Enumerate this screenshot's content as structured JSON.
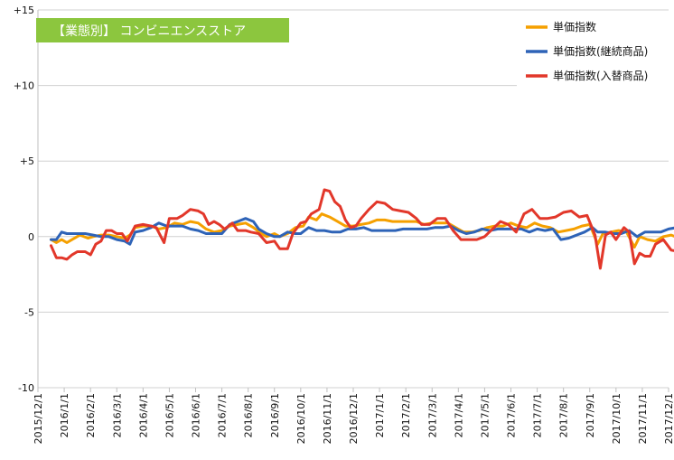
{
  "chart_data": {
    "type": "line",
    "title": "【業態別】 コンビニエンスストア",
    "title_bg": "#8cc63e",
    "ylim": [
      -10,
      15
    ],
    "yticks": [
      {
        "value": 15,
        "label": "+15"
      },
      {
        "value": 10,
        "label": "+10"
      },
      {
        "value": 5,
        "label": "+5"
      },
      {
        "value": 0,
        "label": "0"
      },
      {
        "value": -5,
        "label": "-5"
      },
      {
        "value": -10,
        "label": "-10"
      }
    ],
    "x_start": "2015-12-01",
    "x_end": "2017-12-01",
    "xtick_labels": [
      "2015/12/1",
      "2016/1/1",
      "2016/2/1",
      "2016/3/1",
      "2016/4/1",
      "2016/5/1",
      "2016/6/1",
      "2016/7/1",
      "2016/8/1",
      "2016/9/1",
      "2016/10/1",
      "2016/11/1",
      "2016/12/1",
      "2017/1/1",
      "2017/2/1",
      "2017/3/1",
      "2017/4/1",
      "2017/5/1",
      "2017/6/1",
      "2017/7/1",
      "2017/8/1",
      "2017/9/1",
      "2017/10/1",
      "2017/11/1",
      "2017/12/1"
    ],
    "grid": "horizontal",
    "legend_position": "top-right",
    "series": [
      {
        "name": "単価指数",
        "color": "#f5a000",
        "points": [
          [
            0.5,
            -0.2
          ],
          [
            0.7,
            -0.4
          ],
          [
            0.9,
            -0.2
          ],
          [
            1.1,
            -0.4
          ],
          [
            1.3,
            -0.2
          ],
          [
            1.6,
            0.1
          ],
          [
            1.9,
            -0.1
          ],
          [
            2.1,
            0.0
          ],
          [
            2.4,
            0.1
          ],
          [
            2.7,
            0.1
          ],
          [
            3.0,
            0.0
          ],
          [
            3.3,
            -0.1
          ],
          [
            3.5,
            0.1
          ],
          [
            3.7,
            0.6
          ],
          [
            4.0,
            0.7
          ],
          [
            4.3,
            0.7
          ],
          [
            4.6,
            0.5
          ],
          [
            4.9,
            0.6
          ],
          [
            5.2,
            0.9
          ],
          [
            5.5,
            0.8
          ],
          [
            5.8,
            1.0
          ],
          [
            6.1,
            0.9
          ],
          [
            6.4,
            0.5
          ],
          [
            6.7,
            0.3
          ],
          [
            7.0,
            0.4
          ],
          [
            7.3,
            0.7
          ],
          [
            7.6,
            0.8
          ],
          [
            7.9,
            0.9
          ],
          [
            8.2,
            0.6
          ],
          [
            8.5,
            0.2
          ],
          [
            8.7,
            0.0
          ],
          [
            9.0,
            0.2
          ],
          [
            9.2,
            0.0
          ],
          [
            9.5,
            0.2
          ],
          [
            9.8,
            0.6
          ],
          [
            10.1,
            0.7
          ],
          [
            10.3,
            1.3
          ],
          [
            10.6,
            1.1
          ],
          [
            10.8,
            1.5
          ],
          [
            11.1,
            1.3
          ],
          [
            11.4,
            1.0
          ],
          [
            11.7,
            0.7
          ],
          [
            12.0,
            0.7
          ],
          [
            12.3,
            0.8
          ],
          [
            12.6,
            0.9
          ],
          [
            12.9,
            1.1
          ],
          [
            13.2,
            1.1
          ],
          [
            13.5,
            1.0
          ],
          [
            13.8,
            1.0
          ],
          [
            14.1,
            1.0
          ],
          [
            14.4,
            1.0
          ],
          [
            14.7,
            0.8
          ],
          [
            15.0,
            0.9
          ],
          [
            15.3,
            0.9
          ],
          [
            15.6,
            0.9
          ],
          [
            15.9,
            0.6
          ],
          [
            16.2,
            0.3
          ],
          [
            16.5,
            0.3
          ],
          [
            16.8,
            0.4
          ],
          [
            17.1,
            0.6
          ],
          [
            17.4,
            0.7
          ],
          [
            17.7,
            0.7
          ],
          [
            18.0,
            0.9
          ],
          [
            18.3,
            0.7
          ],
          [
            18.6,
            0.6
          ],
          [
            18.9,
            0.9
          ],
          [
            19.2,
            0.7
          ],
          [
            19.5,
            0.6
          ],
          [
            19.8,
            0.3
          ],
          [
            20.1,
            0.4
          ],
          [
            20.4,
            0.5
          ],
          [
            20.7,
            0.7
          ],
          [
            21.0,
            0.8
          ],
          [
            21.3,
            -0.5
          ],
          [
            21.5,
            0.2
          ],
          [
            21.8,
            0.3
          ],
          [
            22.1,
            0.4
          ],
          [
            22.4,
            0.3
          ],
          [
            22.7,
            -0.7
          ],
          [
            22.9,
            0.0
          ],
          [
            23.2,
            -0.2
          ],
          [
            23.5,
            -0.3
          ],
          [
            23.8,
            0.0
          ],
          [
            24.1,
            0.1
          ],
          [
            24.4,
            -0.1
          ],
          [
            24.7,
            -0.1
          ]
        ]
      },
      {
        "name": "単価指数(継続商品)",
        "color": "#2e63b7",
        "points": [
          [
            0.5,
            -0.2
          ],
          [
            0.7,
            -0.2
          ],
          [
            0.9,
            0.3
          ],
          [
            1.1,
            0.2
          ],
          [
            1.3,
            0.2
          ],
          [
            1.5,
            0.2
          ],
          [
            1.8,
            0.2
          ],
          [
            2.1,
            0.1
          ],
          [
            2.4,
            0.0
          ],
          [
            2.7,
            0.0
          ],
          [
            3.0,
            -0.2
          ],
          [
            3.3,
            -0.3
          ],
          [
            3.5,
            -0.5
          ],
          [
            3.7,
            0.3
          ],
          [
            4.0,
            0.4
          ],
          [
            4.3,
            0.6
          ],
          [
            4.6,
            0.9
          ],
          [
            4.9,
            0.7
          ],
          [
            5.2,
            0.7
          ],
          [
            5.5,
            0.7
          ],
          [
            5.8,
            0.5
          ],
          [
            6.1,
            0.4
          ],
          [
            6.4,
            0.2
          ],
          [
            6.7,
            0.2
          ],
          [
            7.0,
            0.2
          ],
          [
            7.3,
            0.8
          ],
          [
            7.6,
            1.0
          ],
          [
            7.9,
            1.2
          ],
          [
            8.2,
            1.0
          ],
          [
            8.4,
            0.5
          ],
          [
            8.7,
            0.2
          ],
          [
            9.0,
            0.0
          ],
          [
            9.2,
            0.0
          ],
          [
            9.5,
            0.3
          ],
          [
            9.8,
            0.2
          ],
          [
            10.0,
            0.2
          ],
          [
            10.3,
            0.6
          ],
          [
            10.6,
            0.4
          ],
          [
            10.9,
            0.4
          ],
          [
            11.2,
            0.3
          ],
          [
            11.5,
            0.3
          ],
          [
            11.8,
            0.5
          ],
          [
            12.1,
            0.5
          ],
          [
            12.4,
            0.6
          ],
          [
            12.7,
            0.4
          ],
          [
            13.0,
            0.4
          ],
          [
            13.3,
            0.4
          ],
          [
            13.6,
            0.4
          ],
          [
            13.9,
            0.5
          ],
          [
            14.2,
            0.5
          ],
          [
            14.5,
            0.5
          ],
          [
            14.8,
            0.5
          ],
          [
            15.1,
            0.6
          ],
          [
            15.4,
            0.6
          ],
          [
            15.7,
            0.7
          ],
          [
            16.0,
            0.4
          ],
          [
            16.3,
            0.2
          ],
          [
            16.6,
            0.3
          ],
          [
            16.9,
            0.5
          ],
          [
            17.2,
            0.4
          ],
          [
            17.5,
            0.5
          ],
          [
            17.8,
            0.5
          ],
          [
            18.1,
            0.5
          ],
          [
            18.4,
            0.5
          ],
          [
            18.7,
            0.3
          ],
          [
            19.0,
            0.5
          ],
          [
            19.3,
            0.4
          ],
          [
            19.6,
            0.5
          ],
          [
            19.9,
            -0.2
          ],
          [
            20.2,
            -0.1
          ],
          [
            20.5,
            0.1
          ],
          [
            20.8,
            0.3
          ],
          [
            21.1,
            0.6
          ],
          [
            21.3,
            0.3
          ],
          [
            21.6,
            0.3
          ],
          [
            21.9,
            0.2
          ],
          [
            22.2,
            0.2
          ],
          [
            22.5,
            0.4
          ],
          [
            22.8,
            0.0
          ],
          [
            23.1,
            0.3
          ],
          [
            23.4,
            0.3
          ],
          [
            23.7,
            0.3
          ],
          [
            24.0,
            0.5
          ],
          [
            24.3,
            0.6
          ],
          [
            24.6,
            0.5
          ],
          [
            24.9,
            0.5
          ]
        ]
      },
      {
        "name": "単価指数(入替商品)",
        "color": "#e2372a",
        "points": [
          [
            0.5,
            -0.6
          ],
          [
            0.7,
            -1.4
          ],
          [
            0.9,
            -1.4
          ],
          [
            1.1,
            -1.5
          ],
          [
            1.3,
            -1.2
          ],
          [
            1.5,
            -1.0
          ],
          [
            1.8,
            -1.0
          ],
          [
            2.0,
            -1.2
          ],
          [
            2.2,
            -0.5
          ],
          [
            2.4,
            -0.3
          ],
          [
            2.6,
            0.4
          ],
          [
            2.8,
            0.4
          ],
          [
            3.0,
            0.2
          ],
          [
            3.2,
            0.2
          ],
          [
            3.4,
            -0.3
          ],
          [
            3.7,
            0.7
          ],
          [
            4.0,
            0.8
          ],
          [
            4.3,
            0.7
          ],
          [
            4.5,
            0.6
          ],
          [
            4.8,
            -0.4
          ],
          [
            5.0,
            1.2
          ],
          [
            5.3,
            1.2
          ],
          [
            5.5,
            1.4
          ],
          [
            5.8,
            1.8
          ],
          [
            6.1,
            1.7
          ],
          [
            6.3,
            1.5
          ],
          [
            6.5,
            0.8
          ],
          [
            6.7,
            1.0
          ],
          [
            6.9,
            0.8
          ],
          [
            7.1,
            0.5
          ],
          [
            7.4,
            0.9
          ],
          [
            7.6,
            0.4
          ],
          [
            7.9,
            0.4
          ],
          [
            8.1,
            0.3
          ],
          [
            8.4,
            0.2
          ],
          [
            8.7,
            -0.4
          ],
          [
            9.0,
            -0.3
          ],
          [
            9.2,
            -0.8
          ],
          [
            9.5,
            -0.8
          ],
          [
            9.7,
            0.2
          ],
          [
            10.0,
            0.9
          ],
          [
            10.2,
            1.0
          ],
          [
            10.4,
            1.5
          ],
          [
            10.7,
            1.8
          ],
          [
            10.9,
            3.1
          ],
          [
            11.1,
            3.0
          ],
          [
            11.3,
            2.3
          ],
          [
            11.5,
            2.0
          ],
          [
            11.7,
            1.1
          ],
          [
            11.9,
            0.6
          ],
          [
            12.1,
            0.7
          ],
          [
            12.3,
            1.2
          ],
          [
            12.6,
            1.8
          ],
          [
            12.9,
            2.3
          ],
          [
            13.2,
            2.2
          ],
          [
            13.5,
            1.8
          ],
          [
            13.8,
            1.7
          ],
          [
            14.1,
            1.6
          ],
          [
            14.4,
            1.2
          ],
          [
            14.6,
            0.8
          ],
          [
            14.9,
            0.8
          ],
          [
            15.2,
            1.2
          ],
          [
            15.5,
            1.2
          ],
          [
            15.8,
            0.4
          ],
          [
            16.1,
            -0.2
          ],
          [
            16.4,
            -0.2
          ],
          [
            16.7,
            -0.2
          ],
          [
            17.0,
            0.0
          ],
          [
            17.3,
            0.5
          ],
          [
            17.6,
            1.0
          ],
          [
            17.9,
            0.8
          ],
          [
            18.2,
            0.3
          ],
          [
            18.5,
            1.5
          ],
          [
            18.8,
            1.8
          ],
          [
            19.1,
            1.2
          ],
          [
            19.4,
            1.2
          ],
          [
            19.7,
            1.3
          ],
          [
            20.0,
            1.6
          ],
          [
            20.3,
            1.7
          ],
          [
            20.6,
            1.3
          ],
          [
            20.9,
            1.4
          ],
          [
            21.2,
            0.1
          ],
          [
            21.4,
            -2.1
          ],
          [
            21.6,
            0.1
          ],
          [
            21.8,
            0.3
          ],
          [
            22.0,
            -0.2
          ],
          [
            22.3,
            0.6
          ],
          [
            22.5,
            0.3
          ],
          [
            22.7,
            -1.8
          ],
          [
            22.9,
            -1.1
          ],
          [
            23.1,
            -1.3
          ],
          [
            23.3,
            -1.3
          ],
          [
            23.5,
            -0.5
          ],
          [
            23.8,
            -0.2
          ],
          [
            24.1,
            -0.9
          ],
          [
            24.4,
            -1.0
          ],
          [
            24.7,
            -1.1
          ]
        ]
      }
    ]
  }
}
